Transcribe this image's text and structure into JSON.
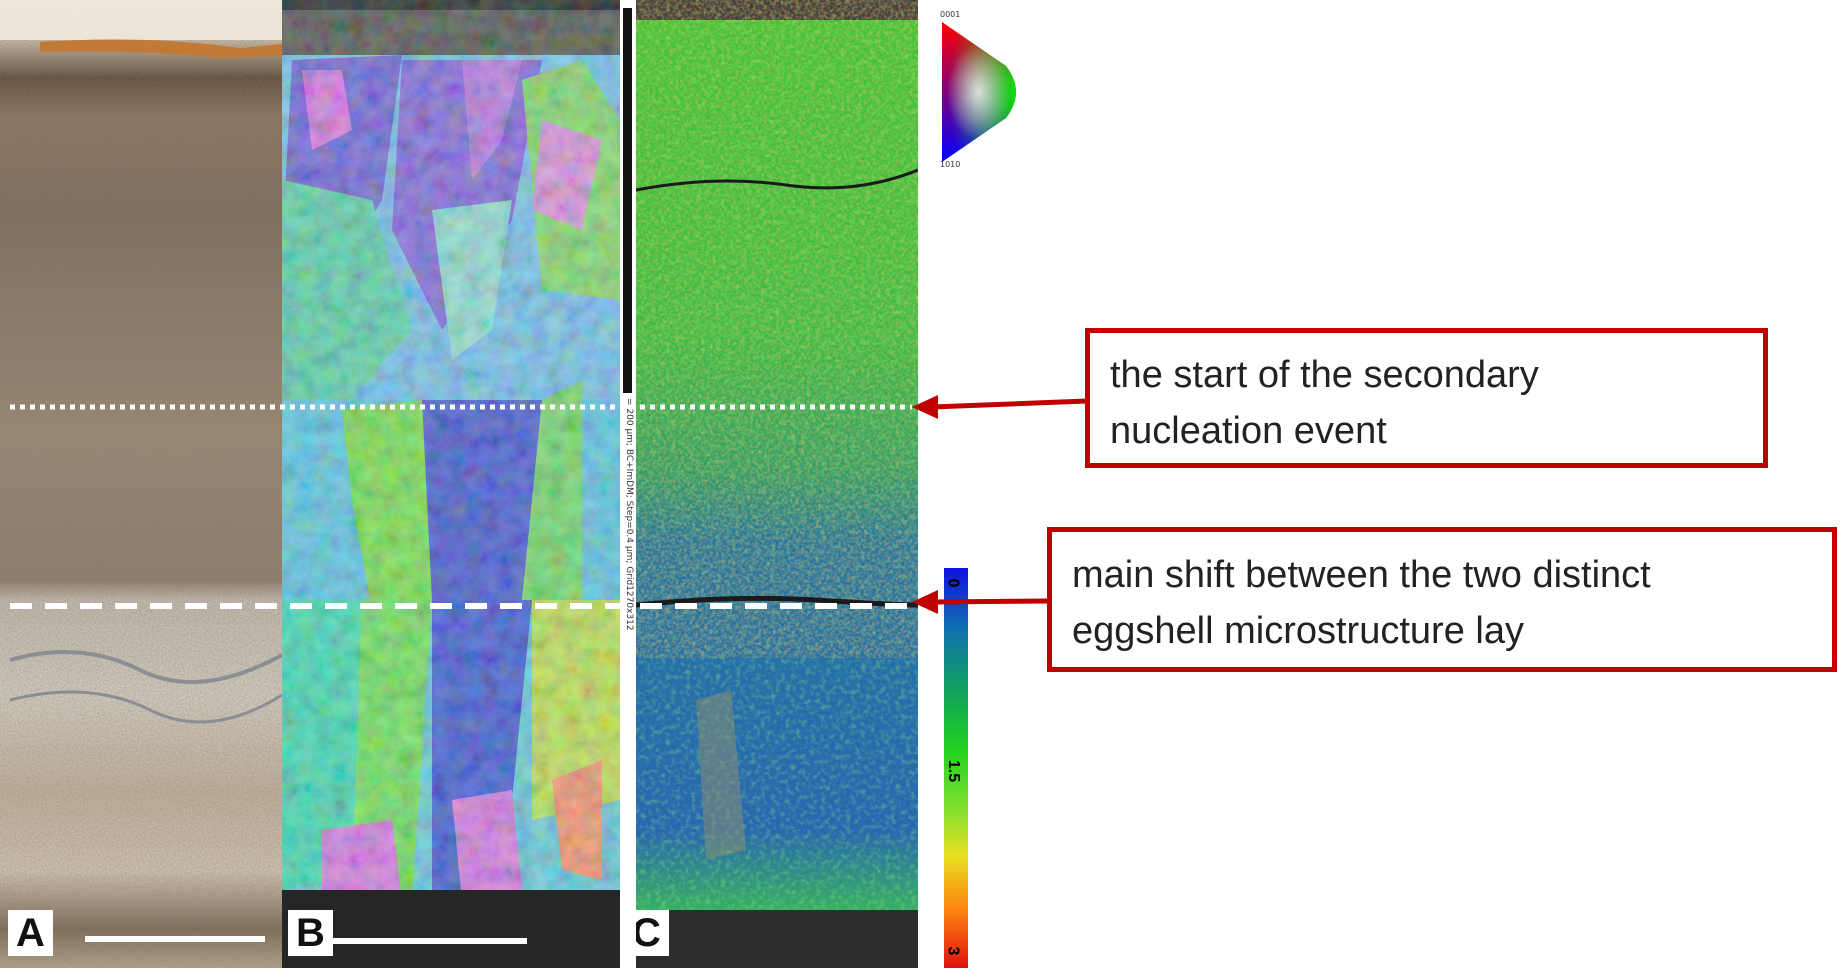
{
  "panels": {
    "a_label": "A",
    "b_label": "B",
    "c_label": "C"
  },
  "annotations": {
    "secondary_nucleation": {
      "line1": "the start of the secondary",
      "line2": "nucleation event"
    },
    "main_shift": {
      "line1": "main shift between the two distinct",
      "line2": "eggshell microstructure lay"
    }
  },
  "ipf_key": {
    "top_label": "0001",
    "bottom_label": "1010"
  },
  "kam_scale": {
    "min_label": "0",
    "mid_label": "1.5",
    "max_label": "3",
    "min": 0,
    "mid": 1.5,
    "max": 3
  },
  "scale_bar_caption": "= 200 µm; BC+ImDM; Step=0.4 µm; Grid1270x312",
  "colors": {
    "callout_border": "#c00000",
    "arrow": "#c00000",
    "marker_lines": "#ffffff"
  }
}
